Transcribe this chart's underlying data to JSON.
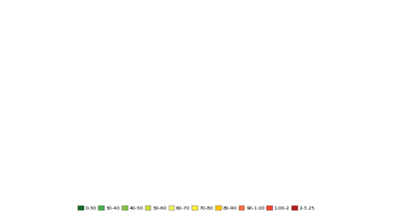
{
  "figsize": [
    5.0,
    2.79
  ],
  "dpi": 100,
  "legend_labels": [
    "0-30",
    "30-40",
    "40-50",
    "50-60",
    "60-70",
    "70-80",
    "80-90",
    "90-1.00",
    "1.00-2",
    "2-3.25"
  ],
  "legend_colors": [
    "#1a6b2f",
    "#4caf50",
    "#8bc34a",
    "#cddc39",
    "#f0f066",
    "#ffeb3b",
    "#ffc107",
    "#ff7043",
    "#f44336",
    "#b71c1c"
  ],
  "background_color": "#ffffff",
  "missing_color": "#ffffff",
  "border_color": "#888888",
  "border_width": 0.2,
  "country_colors": {
    "United States of America": "#f0f066",
    "Canada": "#8bc34a",
    "Mexico": "#1a6b2f",
    "Guatemala": "#1a6b2f",
    "Belize": "#1a6b2f",
    "Honduras": "#1a6b2f",
    "El Salvador": "#1a6b2f",
    "Nicaragua": "#1a6b2f",
    "Costa Rica": "#1a6b2f",
    "Panama": "#1a6b2f",
    "Cuba": "#1a6b2f",
    "Haiti": "#1a6b2f",
    "Dominican Rep.": "#1a6b2f",
    "Jamaica": "#1a6b2f",
    "Trinidad and Tobago": "#1a6b2f",
    "Colombia": "#4caf50",
    "Venezuela": "#1a6b2f",
    "Guyana": "#1a6b2f",
    "Suriname": "#1a6b2f",
    "Brazil": "#4caf50",
    "Ecuador": "#1a6b2f",
    "Peru": "#1a6b2f",
    "Bolivia": "#1a6b2f",
    "Chile": "#ff7043",
    "Argentina": "#1a6b2f",
    "Uruguay": "#1a6b2f",
    "Paraguay": "#1a6b2f",
    "United Kingdom": "#1a6b2f",
    "Ireland": "#1a6b2f",
    "Portugal": "#1a6b2f",
    "Spain": "#1a6b2f",
    "France": "#1a6b2f",
    "Belgium": "#1a6b2f",
    "Netherlands": "#1a6b2f",
    "Germany": "#1a6b2f",
    "Switzerland": "#1a6b2f",
    "Austria": "#1a6b2f",
    "Italy": "#1a6b2f",
    "Denmark": "#1a6b2f",
    "Norway": "#1a6b2f",
    "Sweden": "#8bc34a",
    "Finland": "#1a6b2f",
    "Estonia": "#1a6b2f",
    "Latvia": "#1a6b2f",
    "Lithuania": "#1a6b2f",
    "Poland": "#1a6b2f",
    "Czech Rep.": "#1a6b2f",
    "Slovakia": "#1a6b2f",
    "Hungary": "#1a6b2f",
    "Romania": "#1a6b2f",
    "Bulgaria": "#1a6b2f",
    "Serbia": "#1a6b2f",
    "Croatia": "#1a6b2f",
    "Slovenia": "#1a6b2f",
    "Greece": "#1a6b2f",
    "Turkey": "#1a6b2f",
    "Russia": "#8bc34a",
    "Ukraine": "#1a6b2f",
    "Belarus": "#1a6b2f",
    "Moldova": "#1a6b2f",
    "Macedonia": "#1a6b2f",
    "Albania": "#1a6b2f",
    "Bosnia and Herz.": "#1a6b2f",
    "Montenegro": "#1a6b2f",
    "Luxembourg": "#4caf50",
    "Iceland": "#4caf50",
    "Israel": "#1a6b2f",
    "Saudi Arabia": "#cddc39",
    "Qatar": "#cddc39",
    "United Arab Emirates": "#1a6b2f",
    "Kuwait": "#1a6b2f",
    "Bahrain": "#cddc39",
    "Oman": "#1a6b2f",
    "Yemen": "#1a6b2f",
    "Iraq": "#1a6b2f",
    "Iran": "#1a6b2f",
    "Jordan": "#1a6b2f",
    "Lebanon": "#1a6b2f",
    "Syria": "#1a6b2f",
    "Egypt": "#1a6b2f",
    "Libya": "#1a6b2f",
    "Tunisia": "#1a6b2f",
    "Algeria": "#1a6b2f",
    "Morocco": "#1a6b2f",
    "Mauritania": "#1a6b2f",
    "Senegal": "#1a6b2f",
    "Mali": "#1a6b2f",
    "Niger": "#1a6b2f",
    "Chad": "#1a6b2f",
    "Sudan": "#1a6b2f",
    "Ethiopia": "#1a6b2f",
    "Eritrea": "#1a6b2f",
    "Djibouti": "#1a6b2f",
    "Somalia": "#1a6b2f",
    "Kenya": "#1a6b2f",
    "Tanzania": "#1a6b2f",
    "Mozambique": "#1a6b2f",
    "Madagascar": "#1a6b2f",
    "Zimbabwe": "#1a6b2f",
    "Zambia": "#1a6b2f",
    "Malawi": "#1a6b2f",
    "Angola": "#1a6b2f",
    "Dem. Rep. Congo": "#1a6b2f",
    "Congo": "#1a6b2f",
    "Gabon": "#1a6b2f",
    "Cameroon": "#1a6b2f",
    "Nigeria": "#1a6b2f",
    "Ghana": "#1a6b2f",
    "Côte d'Ivoire": "#1a6b2f",
    "Liberia": "#1a6b2f",
    "Guinea": "#1a6b2f",
    "Sierra Leone": "#1a6b2f",
    "Guinea-Bissau": "#1a6b2f",
    "Gambia": "#1a6b2f",
    "Burkina Faso": "#1a6b2f",
    "Togo": "#1a6b2f",
    "Benin": "#1a6b2f",
    "Central African Rep.": "#1a6b2f",
    "Eq. Guinea": "#1a6b2f",
    "South Africa": "#1a6b2f",
    "Namibia": "#1a6b2f",
    "Botswana": "#1a6b2f",
    "Lesotho": "#1a6b2f",
    "Swaziland": "#1a6b2f",
    "Uganda": "#1a6b2f",
    "Rwanda": "#1a6b2f",
    "Burundi": "#1a6b2f",
    "Kazakhstan": "#1a6b2f",
    "Uzbekistan": "#1a6b2f",
    "Turkmenistan": "#1a6b2f",
    "Kyrgyzstan": "#1a6b2f",
    "Tajikistan": "#1a6b2f",
    "Afghanistan": "#1a6b2f",
    "Pakistan": "#1a6b2f",
    "India": "#1a6b2f",
    "Bangladesh": "#1a6b2f",
    "Nepal": "#1a6b2f",
    "Bhutan": "#1a6b2f",
    "Sri Lanka": "#1a6b2f",
    "Myanmar": "#1a6b2f",
    "Thailand": "#1a6b2f",
    "Cambodia": "#1a6b2f",
    "Laos": "#1a6b2f",
    "Vietnam": "#1a6b2f",
    "Philippines": "#1a6b2f",
    "Indonesia": "#1a6b2f",
    "Malaysia": "#1a6b2f",
    "Singapore": "#1a6b2f",
    "China": "#1a6b2f",
    "Mongolia": "#1a6b2f",
    "South Korea": "#1a6b2f",
    "Japan": "#1a6b2f",
    "North Korea": "#1a6b2f",
    "Australia": "#4caf50",
    "New Zealand": "#1a6b2f",
    "Papua New Guinea": "#1a6b2f",
    "Fiji": "#1a6b2f",
    "South Sudan": "#1a6b2f",
    "W. Sahara": "#ffffff"
  }
}
